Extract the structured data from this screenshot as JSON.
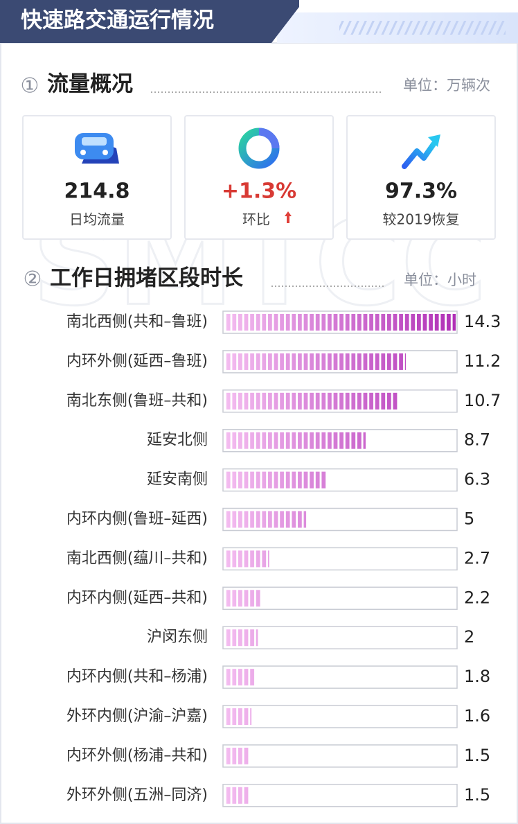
{
  "header": {
    "title": "快速路交通运行情况"
  },
  "watermark": "SMTCC",
  "flow": {
    "index": "①",
    "title": "流量概况",
    "unit": "单位：万辆次",
    "cards": [
      {
        "value": "214.8",
        "label": "日均流量"
      },
      {
        "value": "+1.3%",
        "label": "环比"
      },
      {
        "value": "97.3%",
        "label": "较2019恢复"
      }
    ]
  },
  "chart_data": {
    "type": "bar",
    "orientation": "horizontal",
    "index": "②",
    "title": "工作日拥堵区段时长",
    "unit": "单位：小时",
    "categories": [
      "南北西侧(共和–鲁班)",
      "内环外侧(延西–鲁班)",
      "南北东侧(鲁班–共和)",
      "延安北侧",
      "延安南侧",
      "内环内侧(鲁班–延西)",
      "南北西侧(蕴川–共和)",
      "内环内侧(延西–共和)",
      "沪闵东侧",
      "内环内侧(共和–杨浦)",
      "外环内侧(沪渝–沪嘉)",
      "内环外侧(杨浦–共和)",
      "外环外侧(五洲–同济)"
    ],
    "values": [
      14.3,
      11.2,
      10.7,
      8.7,
      6.3,
      5,
      2.7,
      2.2,
      2,
      1.8,
      1.6,
      1.5,
      1.5
    ],
    "color": [
      "#f4bdf0",
      "#b02fb6"
    ]
  }
}
